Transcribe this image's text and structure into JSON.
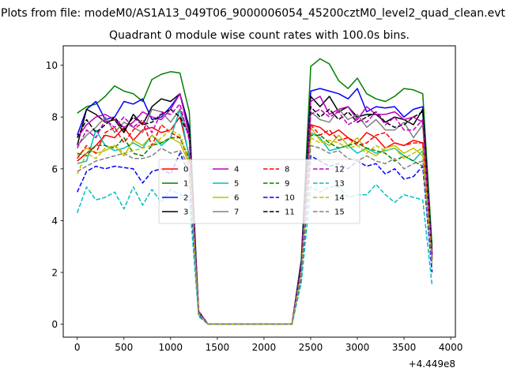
{
  "chart_data": {
    "type": "line",
    "suptitle": "Plots from file: modeM0/AS1A13_049T06_9000006054_45200cztM0_level2_quad_clean.evt",
    "title": "Quadrant 0 module wise count rates with 100.0s bins.",
    "xlabel": "",
    "ylabel": "",
    "x_offset_label": "+4.449e8",
    "xlim": [
      -150,
      4050
    ],
    "ylim": [
      -0.5,
      10.75
    ],
    "xticks": [
      0,
      500,
      1000,
      1500,
      2000,
      2500,
      3000,
      3500,
      4000
    ],
    "yticks": [
      0,
      2,
      4,
      6,
      8,
      10
    ],
    "x": [
      0,
      100,
      200,
      300,
      400,
      500,
      600,
      700,
      800,
      900,
      1000,
      1100,
      1200,
      1300,
      1400,
      1500,
      1600,
      1700,
      1800,
      1900,
      2000,
      2100,
      2200,
      2300,
      2400,
      2500,
      2600,
      2700,
      2800,
      2900,
      3000,
      3100,
      3200,
      3300,
      3400,
      3500,
      3600,
      3700,
      3800
    ],
    "series": [
      {
        "name": "0",
        "color": "#ff0000",
        "dash": "solid",
        "values": [
          6.3,
          6.6,
          6.9,
          7.3,
          7.2,
          7.6,
          7.1,
          7.5,
          7.6,
          7.4,
          7.5,
          8.0,
          6.5,
          0.5,
          0,
          0,
          0,
          0,
          0,
          0,
          0,
          0,
          0,
          0,
          2.2,
          7.7,
          7.6,
          7.3,
          7.5,
          7.2,
          7.0,
          7.4,
          7.2,
          6.8,
          7.0,
          6.9,
          7.1,
          7.0,
          2.8
        ]
      },
      {
        "name": "1",
        "color": "#008000",
        "dash": "solid",
        "values": [
          8.15,
          8.4,
          8.5,
          8.8,
          9.2,
          9.0,
          8.9,
          8.6,
          9.45,
          9.65,
          9.75,
          9.7,
          8.2,
          0.5,
          0,
          0,
          0,
          0,
          0,
          0,
          0,
          0,
          0,
          0,
          2.5,
          9.95,
          10.25,
          10.05,
          9.4,
          9.1,
          9.5,
          8.9,
          8.7,
          8.6,
          8.8,
          9.1,
          9.05,
          8.9,
          3.0
        ]
      },
      {
        "name": "2",
        "color": "#0000ff",
        "dash": "solid",
        "values": [
          7.3,
          8.3,
          8.6,
          7.9,
          8.0,
          8.6,
          8.5,
          8.7,
          7.9,
          8.0,
          8.4,
          8.9,
          7.6,
          0.5,
          0,
          0,
          0,
          0,
          0,
          0,
          0,
          0,
          0,
          0,
          2.4,
          9.0,
          9.1,
          9.0,
          8.9,
          8.7,
          9.1,
          8.2,
          8.4,
          8.35,
          8.4,
          8.0,
          8.3,
          8.4,
          2.6
        ]
      },
      {
        "name": "3",
        "color": "#000000",
        "dash": "solid",
        "values": [
          6.9,
          8.3,
          8.1,
          7.8,
          7.9,
          7.4,
          8.1,
          7.7,
          8.4,
          8.7,
          8.6,
          8.9,
          7.5,
          0.5,
          0,
          0,
          0,
          0,
          0,
          0,
          0,
          0,
          0,
          0,
          2.3,
          8.8,
          8.4,
          8.8,
          8.2,
          8.4,
          8.0,
          8.1,
          8.1,
          7.8,
          8.0,
          7.9,
          7.7,
          8.3,
          2.5
        ]
      },
      {
        "name": "4",
        "color": "#bf00bf",
        "dash": "solid",
        "values": [
          7.2,
          7.7,
          8.0,
          8.1,
          7.9,
          7.6,
          7.8,
          8.2,
          8.0,
          7.9,
          8.3,
          8.9,
          7.3,
          0.5,
          0,
          0,
          0,
          0,
          0,
          0,
          0,
          0,
          0,
          0,
          2.3,
          8.6,
          8.8,
          8.1,
          8.3,
          8.4,
          7.9,
          8.4,
          8.1,
          8.1,
          8.2,
          7.9,
          8.0,
          7.8,
          2.6
        ]
      },
      {
        "name": "5",
        "color": "#00bfbf",
        "dash": "solid",
        "values": [
          6.2,
          6.3,
          7.5,
          6.9,
          6.7,
          6.8,
          7.0,
          6.8,
          7.3,
          6.9,
          7.2,
          8.3,
          6.4,
          0.4,
          0,
          0,
          0,
          0,
          0,
          0,
          0,
          0,
          0,
          0,
          2.1,
          7.4,
          7.2,
          6.7,
          6.8,
          6.9,
          6.6,
          6.8,
          6.6,
          6.7,
          6.8,
          6.5,
          6.3,
          6.7,
          2.4
        ]
      },
      {
        "name": "6",
        "color": "#bfbf00",
        "dash": "solid",
        "values": [
          6.5,
          6.8,
          6.6,
          6.7,
          6.9,
          6.5,
          7.1,
          6.9,
          7.3,
          7.0,
          7.2,
          7.0,
          6.2,
          0.4,
          0,
          0,
          0,
          0,
          0,
          0,
          0,
          0,
          0,
          0,
          2.0,
          7.6,
          7.1,
          6.9,
          7.3,
          6.9,
          7.2,
          6.7,
          6.5,
          6.8,
          6.9,
          6.6,
          6.8,
          6.5,
          2.4
        ]
      },
      {
        "name": "7",
        "color": "#808080",
        "dash": "solid",
        "values": [
          6.9,
          7.3,
          7.6,
          8.0,
          7.4,
          7.8,
          7.6,
          7.4,
          8.3,
          8.2,
          7.8,
          8.3,
          7.2,
          0.5,
          0,
          0,
          0,
          0,
          0,
          0,
          0,
          0,
          0,
          0,
          2.2,
          8.2,
          7.9,
          7.8,
          8.3,
          7.9,
          8.1,
          7.6,
          7.9,
          7.5,
          7.5,
          7.8,
          7.2,
          7.7,
          2.5
        ]
      },
      {
        "name": "8",
        "color": "#ff0000",
        "dash": "dashed",
        "values": [
          6.4,
          6.9,
          6.6,
          7.4,
          7.6,
          7.0,
          7.5,
          7.8,
          6.9,
          7.7,
          7.4,
          7.2,
          6.3,
          0.4,
          0,
          0,
          0,
          0,
          0,
          0,
          0,
          0,
          0,
          0,
          2.1,
          7.7,
          7.3,
          7.5,
          7.1,
          7.2,
          6.9,
          7.0,
          7.3,
          7.4,
          7.0,
          6.9,
          7.0,
          7.0,
          2.7
        ]
      },
      {
        "name": "9",
        "color": "#008000",
        "dash": "dashed",
        "values": [
          6.6,
          6.5,
          6.9,
          6.9,
          6.8,
          7.2,
          6.6,
          6.5,
          6.9,
          7.0,
          7.2,
          7.2,
          6.4,
          0.4,
          0,
          0,
          0,
          0,
          0,
          0,
          0,
          0,
          0,
          0,
          2.0,
          7.3,
          7.3,
          7.0,
          6.8,
          6.9,
          7.0,
          6.8,
          6.7,
          6.6,
          6.3,
          6.5,
          6.3,
          6.1,
          2.5
        ]
      },
      {
        "name": "10",
        "color": "#0000ff",
        "dash": "dashed",
        "values": [
          5.1,
          5.9,
          6.1,
          6.0,
          6.1,
          6.05,
          6.0,
          5.45,
          5.9,
          6.0,
          5.8,
          6.6,
          5.8,
          0.35,
          0,
          0,
          0,
          0,
          0,
          0,
          0,
          0,
          0,
          0,
          1.8,
          6.5,
          6.3,
          6.1,
          6.2,
          6.0,
          6.3,
          6.1,
          6.2,
          5.8,
          6.0,
          5.6,
          5.7,
          6.1,
          2.0
        ]
      },
      {
        "name": "11",
        "color": "#000000",
        "dash": "dashed",
        "values": [
          7.2,
          7.9,
          7.4,
          7.7,
          8.0,
          7.5,
          8.0,
          7.7,
          7.8,
          8.1,
          8.3,
          8.0,
          7.3,
          0.5,
          0,
          0,
          0,
          0,
          0,
          0,
          0,
          0,
          0,
          0,
          2.3,
          8.4,
          8.0,
          8.3,
          7.9,
          8.2,
          7.8,
          8.0,
          8.2,
          7.8,
          7.6,
          7.7,
          8.0,
          8.2,
          2.7
        ]
      },
      {
        "name": "12",
        "color": "#bf00bf",
        "dash": "dashed",
        "values": [
          6.8,
          7.5,
          7.2,
          7.9,
          7.6,
          8.0,
          7.6,
          7.9,
          7.4,
          8.2,
          8.1,
          8.5,
          7.1,
          0.5,
          0,
          0,
          0,
          0,
          0,
          0,
          0,
          0,
          0,
          0,
          2.2,
          8.1,
          8.3,
          8.0,
          8.2,
          7.7,
          7.9,
          7.8,
          8.2,
          7.7,
          8.0,
          7.5,
          7.5,
          7.9,
          2.6
        ]
      },
      {
        "name": "13",
        "color": "#00bfbf",
        "dash": "dashed",
        "values": [
          4.3,
          5.3,
          4.8,
          4.9,
          5.1,
          4.45,
          5.3,
          4.6,
          5.2,
          4.7,
          5.2,
          5.0,
          4.9,
          0.3,
          0,
          0,
          0,
          0,
          0,
          0,
          0,
          0,
          0,
          0,
          1.6,
          5.3,
          5.1,
          5.3,
          5.3,
          4.9,
          5.0,
          5.0,
          5.4,
          5.0,
          4.7,
          5.0,
          4.9,
          4.8,
          1.5
        ]
      },
      {
        "name": "14",
        "color": "#bfbf00",
        "dash": "dashed",
        "values": [
          5.8,
          6.6,
          6.4,
          6.8,
          6.9,
          6.6,
          6.7,
          6.8,
          6.9,
          7.2,
          7.5,
          7.3,
          6.3,
          0.4,
          0,
          0,
          0,
          0,
          0,
          0,
          0,
          0,
          0,
          0,
          2.0,
          7.2,
          7.0,
          7.1,
          7.0,
          6.8,
          6.9,
          6.6,
          6.9,
          6.7,
          6.8,
          6.4,
          6.6,
          6.8,
          2.4
        ]
      },
      {
        "name": "15",
        "color": "#808080",
        "dash": "dashed",
        "values": [
          5.9,
          6.1,
          6.3,
          6.4,
          6.5,
          6.6,
          6.4,
          6.4,
          6.5,
          6.8,
          6.6,
          6.7,
          6.1,
          0.4,
          0,
          0,
          0,
          0,
          0,
          0,
          0,
          0,
          0,
          0,
          1.9,
          6.9,
          6.8,
          6.6,
          6.7,
          6.4,
          6.3,
          6.5,
          6.3,
          6.2,
          6.4,
          6.0,
          6.2,
          6.3,
          2.3
        ]
      }
    ],
    "legend": {
      "location": "center",
      "ncol": 4
    }
  }
}
